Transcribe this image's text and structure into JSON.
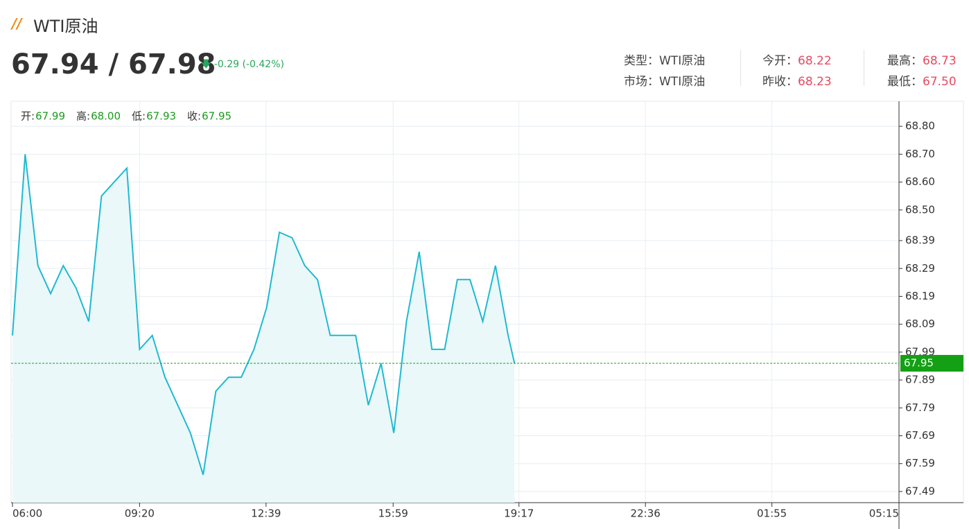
{
  "header": {
    "title": "WTI原油",
    "price": "67.94 / 67.98",
    "change": "-0.29 (-0.42%)",
    "info": [
      {
        "label": "类型：",
        "value": "WTI原油"
      },
      {
        "label": "今开：",
        "value": "68.22"
      },
      {
        "label": "最高：",
        "value": "68.73"
      },
      {
        "label": "市场：",
        "value": "WTI原油"
      },
      {
        "label": "昨收：",
        "value": "68.23"
      },
      {
        "label": "最低：",
        "value": "67.50"
      }
    ]
  },
  "chart_data": {
    "type": "line",
    "color": "#1fb9d1",
    "fill": "#eaf8fa",
    "ohlc": [
      {
        "label": "开:",
        "value": "67.99"
      },
      {
        "label": "高:",
        "value": "68.00"
      },
      {
        "label": "低:",
        "value": "67.93"
      },
      {
        "label": "收:",
        "value": "67.95"
      }
    ],
    "x": [
      "06:00",
      "06:20",
      "06:40",
      "07:00",
      "07:20",
      "07:40",
      "08:00",
      "08:20",
      "08:40",
      "09:00",
      "09:20",
      "09:40",
      "10:00",
      "10:20",
      "10:40",
      "11:00",
      "11:20",
      "11:40",
      "12:00",
      "12:20",
      "12:40",
      "13:00",
      "13:20",
      "13:40",
      "14:00",
      "14:20",
      "14:40",
      "15:00",
      "15:20",
      "15:40",
      "16:00",
      "16:20",
      "16:40",
      "17:00",
      "17:20",
      "17:40",
      "18:00",
      "18:20",
      "18:40",
      "19:00",
      "19:10"
    ],
    "values": [
      68.05,
      68.7,
      68.3,
      68.2,
      68.3,
      68.22,
      68.1,
      68.55,
      68.6,
      68.65,
      68.0,
      68.05,
      67.9,
      67.8,
      67.7,
      67.55,
      67.85,
      67.9,
      67.9,
      68.0,
      68.15,
      68.42,
      68.4,
      68.3,
      68.25,
      68.05,
      68.05,
      68.05,
      67.8,
      67.95,
      67.7,
      68.1,
      68.35,
      68.0,
      68.0,
      68.25,
      68.25,
      68.1,
      68.3,
      68.05,
      67.95
    ],
    "last_value": 67.95,
    "last_color": "#14a014",
    "xlim": [
      "06:00",
      "05:15"
    ],
    "xticks": [
      "06:00",
      "09:20",
      "12:39",
      "15:59",
      "19:17",
      "22:36",
      "01:55",
      "05:15"
    ],
    "ylim": [
      67.45,
      68.89
    ],
    "yticks": [
      67.49,
      67.59,
      67.69,
      67.79,
      67.89,
      67.99,
      68.09,
      68.19,
      68.29,
      68.39,
      {
        "value": 68.5,
        "label": "68.50"
      },
      {
        "value": 68.6,
        "label": "68.60"
      },
      {
        "value": 68.7,
        "label": "68.70"
      },
      {
        "value": 68.8,
        "label": "68.80"
      }
    ],
    "grid": true
  }
}
